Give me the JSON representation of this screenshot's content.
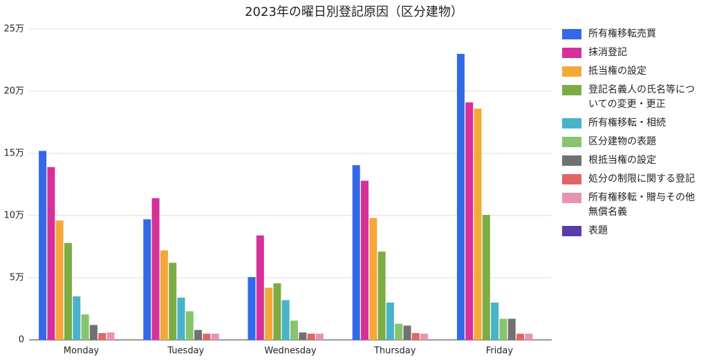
{
  "chart_data": {
    "type": "bar",
    "title": "2023年の曜日別登記原因（区分建物）",
    "categories": [
      "Monday",
      "Tuesday",
      "Wednesday",
      "Thursday",
      "Friday"
    ],
    "series": [
      {
        "name": "所有権移転売買",
        "color": "#3369e8",
        "values": [
          152000,
          97000,
          50500,
          140500,
          230000
        ]
      },
      {
        "name": "抹消登記",
        "color": "#d6309a",
        "values": [
          139000,
          114000,
          84000,
          128000,
          191000
        ]
      },
      {
        "name": "抵当権の設定",
        "color": "#f4a83a",
        "values": [
          96000,
          72000,
          42000,
          98000,
          186000
        ]
      },
      {
        "name": "登記名義人の氏名等についての変更・更正",
        "color": "#7cac44",
        "values": [
          78000,
          62000,
          45500,
          71000,
          100500
        ]
      },
      {
        "name": "所有権移転・相続",
        "color": "#4ab3c9",
        "values": [
          35000,
          34000,
          32000,
          30000,
          30000
        ]
      },
      {
        "name": "区分建物の表題",
        "color": "#88c46f",
        "values": [
          20500,
          23000,
          15500,
          13000,
          17000
        ]
      },
      {
        "name": "根抵当権の設定",
        "color": "#717171",
        "values": [
          12000,
          8000,
          6000,
          11500,
          17000
        ]
      },
      {
        "name": "処分の制限に関する登記",
        "color": "#e06666",
        "values": [
          5500,
          5000,
          5000,
          5500,
          5000
        ]
      },
      {
        "name": "所有権移転・贈与その他無償名義",
        "color": "#e993b0",
        "values": [
          6000,
          5000,
          5000,
          5000,
          5000
        ]
      },
      {
        "name": "表題",
        "color": "#5b3bab",
        "values": [
          0,
          0,
          0,
          0,
          0
        ]
      }
    ],
    "ylim": [
      0,
      250000
    ],
    "yticks": [
      0,
      {
        "value": 50000,
        "label": "5万"
      },
      {
        "value": 100000,
        "label": "10万"
      },
      {
        "value": 150000,
        "label": "15万"
      },
      {
        "value": 200000,
        "label": "20万"
      },
      {
        "value": 250000,
        "label": "25万"
      }
    ],
    "grid": true
  }
}
